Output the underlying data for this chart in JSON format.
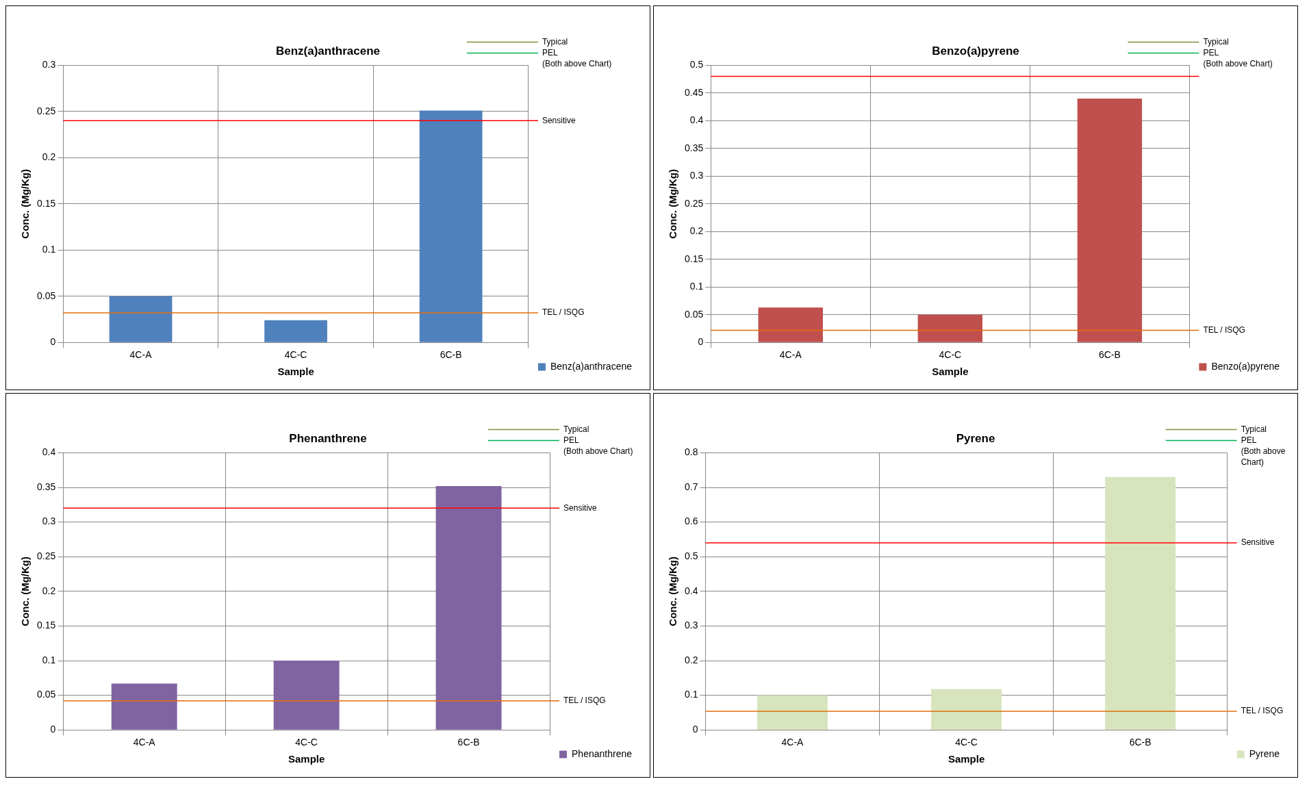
{
  "chart_data": [
    {
      "type": "bar",
      "title": "Benz(a)anthracene",
      "xlabel": "Sample",
      "ylabel": "Conc. (Mg/Kg)",
      "categories": [
        "4C-A",
        "4C-C",
        "6C-B"
      ],
      "series": [
        {
          "name": "Benz(a)anthracene",
          "color": "#4f81bd",
          "values": [
            0.05,
            0.024,
            0.251
          ]
        }
      ],
      "ylim": [
        0,
        0.3
      ],
      "yticks": [
        0,
        0.05,
        0.1,
        0.15,
        0.2,
        0.25,
        0.3
      ],
      "grid": true,
      "legend": "right",
      "ref_lines": [
        {
          "axis": "y",
          "value": 0.24,
          "label": "Sensitive",
          "color": "#ff0000"
        },
        {
          "axis": "y",
          "value": 0.032,
          "label": "TEL / ISQG",
          "color": "#e46c0a"
        }
      ],
      "annotations": [
        "Typical",
        "PEL",
        "(Both above Chart)"
      ]
    },
    {
      "type": "bar",
      "title": "Benzo(a)pyrene",
      "xlabel": "Sample",
      "ylabel": "Conc. (Mg/Kg)",
      "categories": [
        "4C-A",
        "4C-C",
        "6C-B"
      ],
      "series": [
        {
          "name": "Benzo(a)pyrene",
          "color": "#c0504d",
          "values": [
            0.063,
            0.05,
            0.44
          ]
        }
      ],
      "ylim": [
        0,
        0.5
      ],
      "yticks": [
        0,
        0.05,
        0.1,
        0.15,
        0.2,
        0.25,
        0.3,
        0.35,
        0.4,
        0.45,
        0.5
      ],
      "grid": true,
      "legend": "right",
      "ref_lines": [
        {
          "axis": "y",
          "value": 0.48,
          "label": null,
          "color": "#ff0000"
        },
        {
          "axis": "y",
          "value": 0.022,
          "label": "TEL / ISQG",
          "color": "#e46c0a"
        }
      ],
      "annotations": [
        "Typical",
        "PEL",
        "(Both above Chart)"
      ]
    },
    {
      "type": "bar",
      "title": "Phenanthrene",
      "xlabel": "Sample",
      "ylabel": "Conc. (Mg/Kg)",
      "categories": [
        "4C-A",
        "4C-C",
        "6C-B"
      ],
      "series": [
        {
          "name": "Phenanthrene",
          "color": "#8064a2",
          "values": [
            0.067,
            0.1,
            0.352
          ]
        }
      ],
      "ylim": [
        0,
        0.4
      ],
      "yticks": [
        0,
        0.05,
        0.1,
        0.15,
        0.2,
        0.25,
        0.3,
        0.35,
        0.4
      ],
      "grid": true,
      "legend": "right",
      "ref_lines": [
        {
          "axis": "y",
          "value": 0.32,
          "label": "Sensitive",
          "color": "#ff0000"
        },
        {
          "axis": "y",
          "value": 0.042,
          "label": "TEL / ISQG",
          "color": "#e46c0a"
        }
      ],
      "annotations": [
        "Typical",
        "PEL",
        "(Both above Chart)"
      ]
    },
    {
      "type": "bar",
      "title": "Pyrene",
      "xlabel": "Sample",
      "ylabel": "Conc. (Mg/Kg)",
      "categories": [
        "4C-A",
        "4C-C",
        "6C-B"
      ],
      "series": [
        {
          "name": "Pyrene",
          "color": "#d7e4bd",
          "values": [
            0.1,
            0.118,
            0.73
          ]
        }
      ],
      "ylim": [
        0,
        0.8
      ],
      "yticks": [
        0,
        0.1,
        0.2,
        0.3,
        0.4,
        0.5,
        0.6,
        0.7,
        0.8
      ],
      "grid": true,
      "legend": "right",
      "ref_lines": [
        {
          "axis": "y",
          "value": 0.54,
          "label": "Sensitive",
          "color": "#ff0000"
        },
        {
          "axis": "y",
          "value": 0.054,
          "label": "TEL / ISQG",
          "color": "#e46c0a"
        }
      ],
      "annotations": [
        "Typical",
        "PEL",
        "(Both above Chart)"
      ]
    }
  ]
}
